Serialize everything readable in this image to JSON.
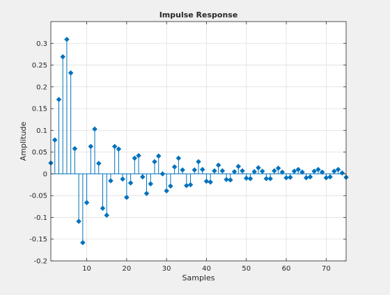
{
  "chart_data": {
    "type": "stem",
    "title": "Impulse Response",
    "xlabel": "Samples",
    "ylabel": "Amplitude",
    "xlim": [
      1,
      75
    ],
    "ylim": [
      -0.2,
      0.35
    ],
    "grid": true,
    "colors": {
      "series": "#0072bd",
      "axes": "#262626",
      "grid": "#dfdfdf",
      "background": "#ffffff",
      "figure": "#f0f0f0"
    },
    "xticks": [
      10,
      20,
      30,
      40,
      50,
      60,
      70
    ],
    "yticks": [
      -0.2,
      -0.15,
      -0.1,
      -0.05,
      0,
      0.05,
      0.1,
      0.15,
      0.2,
      0.25,
      0.3
    ],
    "ytick_labels": [
      "-0.2",
      "-0.15",
      "-0.1",
      "-0.05",
      "0",
      "0.05",
      "0.1",
      "0.15",
      "0.2",
      "0.25",
      "0.3"
    ],
    "x": [
      1,
      2,
      3,
      4,
      5,
      6,
      7,
      8,
      9,
      10,
      11,
      12,
      13,
      14,
      15,
      16,
      17,
      18,
      19,
      20,
      21,
      22,
      23,
      24,
      25,
      26,
      27,
      28,
      29,
      30,
      31,
      32,
      33,
      34,
      35,
      36,
      37,
      38,
      39,
      40,
      41,
      42,
      43,
      44,
      45,
      46,
      47,
      48,
      49,
      50,
      51,
      52,
      53,
      54,
      55,
      56,
      57,
      58,
      59,
      60,
      61,
      62,
      63,
      64,
      65,
      66,
      67,
      68,
      69,
      70,
      71,
      72,
      73,
      74,
      75
    ],
    "series": [
      {
        "values": [
          0.025,
          0.078,
          0.171,
          0.269,
          0.309,
          0.232,
          0.058,
          -0.109,
          -0.158,
          -0.066,
          0.063,
          0.103,
          0.024,
          -0.079,
          -0.095,
          -0.016,
          0.063,
          0.057,
          -0.012,
          -0.054,
          -0.021,
          0.036,
          0.042,
          -0.007,
          -0.045,
          -0.023,
          0.028,
          0.041,
          0.0,
          -0.039,
          -0.028,
          0.016,
          0.036,
          0.009,
          -0.027,
          -0.025,
          0.009,
          0.028,
          0.01,
          -0.017,
          -0.019,
          0.007,
          0.02,
          0.007,
          -0.013,
          -0.014,
          0.005,
          0.017,
          0.007,
          -0.01,
          -0.011,
          0.005,
          0.014,
          0.006,
          -0.011,
          -0.011,
          0.007,
          0.013,
          0.004,
          -0.009,
          -0.008,
          0.006,
          0.01,
          0.004,
          -0.009,
          -0.007,
          0.006,
          0.01,
          0.004,
          -0.009,
          -0.007,
          0.006,
          0.01,
          0.002,
          -0.008
        ]
      }
    ]
  }
}
